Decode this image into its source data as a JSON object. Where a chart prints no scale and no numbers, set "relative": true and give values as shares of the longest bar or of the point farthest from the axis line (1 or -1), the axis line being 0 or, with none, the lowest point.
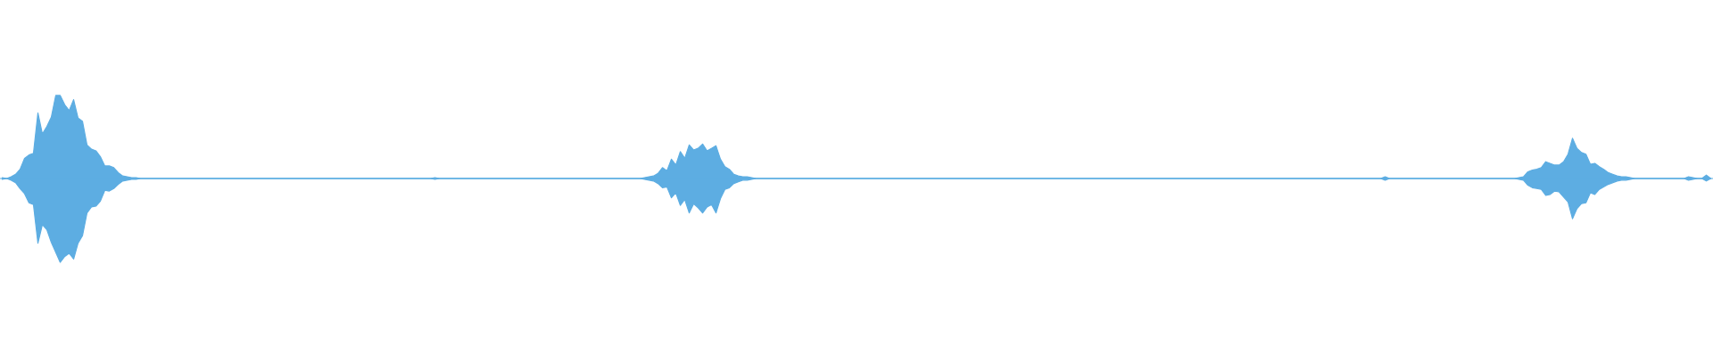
{
  "chart_data": {
    "type": "area",
    "relative": true,
    "categories": [
      null,
      null,
      null,
      null,
      null,
      null,
      null,
      null,
      null,
      null,
      null,
      null,
      null,
      null,
      null,
      null,
      null,
      null,
      null,
      null,
      null,
      null,
      null,
      null,
      null,
      null,
      null,
      null,
      null,
      null,
      null,
      null,
      null,
      null,
      null,
      null,
      null,
      null,
      null,
      null,
      null,
      null,
      null,
      null,
      null,
      null,
      null,
      null,
      null,
      null,
      null,
      null,
      null,
      null,
      null,
      null,
      null,
      null,
      null,
      null,
      null,
      null,
      null,
      null,
      null,
      null,
      null,
      null,
      null,
      null,
      null,
      null,
      null,
      null,
      null,
      null,
      null,
      null,
      null,
      null,
      null,
      null,
      null,
      null,
      null,
      null,
      null,
      null,
      null,
      null,
      null,
      null,
      null,
      null,
      null,
      null,
      null,
      null,
      null,
      null,
      null,
      null,
      null,
      null,
      null,
      null,
      null,
      null,
      null,
      null,
      null,
      null,
      null,
      null,
      null,
      null,
      null,
      null,
      null,
      null,
      null,
      null,
      null,
      null,
      null,
      null,
      null,
      null,
      null,
      null,
      null,
      null,
      null,
      null,
      null,
      null,
      null,
      null,
      null,
      null,
      null,
      null,
      null,
      null,
      null,
      null,
      null,
      null,
      null,
      null,
      null,
      null,
      null,
      null,
      null,
      null,
      null,
      null,
      null,
      null,
      null,
      null,
      null,
      null,
      null,
      null,
      null,
      null,
      null,
      null,
      null,
      null,
      null,
      null,
      null,
      null,
      null,
      null,
      null,
      null,
      null,
      null,
      null,
      null,
      null,
      null,
      null,
      null,
      null,
      null,
      null,
      null,
      null,
      null,
      null,
      null,
      null,
      null,
      null,
      null,
      null,
      null,
      null,
      null,
      null,
      null,
      null,
      null,
      null,
      null,
      null,
      null,
      null,
      null,
      null,
      null,
      null,
      null,
      null,
      null,
      null,
      null,
      null,
      null,
      null,
      null,
      null,
      null,
      null,
      null,
      null,
      null,
      null,
      null,
      null,
      null,
      null,
      null,
      null,
      null,
      null,
      null,
      null,
      null,
      null,
      null,
      null,
      null,
      null,
      null,
      null,
      null,
      null,
      null,
      null,
      null,
      null,
      null,
      null,
      null,
      null,
      null,
      null,
      null,
      null,
      null,
      null,
      null,
      null,
      null,
      null,
      null,
      null,
      null,
      null,
      null,
      null,
      null,
      null,
      null,
      null,
      null,
      null,
      null,
      null,
      null,
      null,
      null,
      null,
      null,
      null,
      null,
      null,
      null,
      null,
      null,
      null,
      null,
      null,
      null,
      null,
      null,
      null,
      null,
      null,
      null,
      null,
      null,
      null,
      null,
      null,
      null,
      null,
      null,
      null,
      null,
      null,
      null,
      null,
      null,
      null,
      null,
      null,
      null,
      null,
      null,
      null,
      null,
      null,
      null,
      null,
      null,
      null,
      null,
      null,
      null,
      null,
      null,
      null,
      null,
      null,
      null,
      null,
      null,
      null,
      null,
      null,
      null,
      null,
      null,
      null,
      null,
      null,
      null,
      null,
      null,
      null,
      null,
      null,
      null,
      null,
      null,
      null,
      null,
      null,
      null,
      null,
      null,
      null,
      null,
      null,
      null,
      null,
      null,
      null,
      null,
      null,
      null,
      null,
      null,
      null,
      null,
      null,
      null
    ],
    "series": [
      {
        "color": "#5dade2",
        "values": [
          0.01,
          0,
          0.02,
          0.05,
          0.11,
          0.24,
          0.28,
          0.3,
          0.78,
          0.53,
          0.62,
          0.73,
          0.99,
          0.99,
          0.88,
          0.81,
          0.94,
          0.72,
          0.68,
          0.4,
          0.35,
          0.33,
          0.26,
          0.15,
          0.15,
          0.13,
          0.07,
          0.03,
          0.02,
          0.01,
          0.01,
          0,
          0,
          0,
          0,
          0,
          0,
          0,
          0,
          0,
          0,
          0,
          0,
          0,
          0,
          0,
          0,
          0,
          0,
          0,
          0,
          0,
          0,
          0,
          0,
          0,
          0,
          0,
          0,
          0,
          0,
          0,
          0,
          0,
          0,
          0,
          0,
          0,
          0,
          0,
          0,
          0,
          0,
          0,
          0,
          0,
          0,
          0,
          0,
          0,
          0,
          0,
          0,
          0,
          0,
          0,
          0,
          0,
          0,
          0,
          0,
          0,
          0,
          0,
          0,
          0,
          0,
          0.01,
          0,
          0,
          0,
          0,
          0,
          0,
          0,
          0,
          0,
          0,
          0,
          0,
          0,
          0,
          0,
          0,
          0,
          0,
          0,
          0,
          0,
          0,
          0,
          0,
          0,
          0,
          0,
          0,
          0,
          0,
          0,
          0,
          0,
          0,
          0,
          0,
          0,
          0,
          0,
          0,
          0,
          0,
          0,
          0,
          0,
          0,
          0.01,
          0.02,
          0.03,
          0.06,
          0.13,
          0.09,
          0.23,
          0.16,
          0.32,
          0.24,
          0.4,
          0.34,
          0.36,
          0.41,
          0.33,
          0.36,
          0.39,
          0.23,
          0.14,
          0.11,
          0.05,
          0.03,
          0.02,
          0.02,
          0.01,
          0,
          0,
          0,
          0,
          0,
          0,
          0,
          0,
          0,
          0,
          0,
          0,
          0,
          0,
          0,
          0,
          0,
          0,
          0,
          0,
          0,
          0,
          0,
          0,
          0,
          0,
          0,
          0,
          0,
          0,
          0,
          0,
          0,
          0,
          0,
          0,
          0,
          0,
          0,
          0,
          0,
          0,
          0,
          0,
          0,
          0,
          0,
          0,
          0,
          0,
          0,
          0,
          0,
          0,
          0,
          0,
          0,
          0,
          0,
          0,
          0,
          0,
          0,
          0,
          0,
          0,
          0,
          0,
          0,
          0,
          0,
          0,
          0,
          0,
          0,
          0,
          0,
          0,
          0,
          0,
          0,
          0,
          0,
          0,
          0,
          0,
          0,
          0,
          0,
          0,
          0,
          0,
          0,
          0,
          0,
          0,
          0,
          0,
          0,
          0,
          0,
          0,
          0,
          0,
          0,
          0,
          0,
          0,
          0,
          0,
          0,
          0,
          0,
          0,
          0,
          0,
          0,
          0,
          0,
          0,
          0,
          0,
          0,
          0,
          0,
          0,
          0,
          0,
          0,
          0,
          0,
          0,
          0,
          0,
          0,
          0,
          0,
          0,
          0,
          0,
          0,
          0.02,
          0,
          0,
          0,
          0,
          0,
          0,
          0,
          0,
          0,
          0,
          0,
          0,
          0,
          0,
          0,
          0,
          0,
          0,
          0,
          0,
          0,
          0,
          0,
          0,
          0,
          0,
          0,
          0,
          0,
          0.01,
          0.02,
          0.08,
          0.1,
          0.11,
          0.13,
          0.2,
          0.18,
          0.16,
          0.16,
          0.2,
          0.29,
          0.48,
          0.36,
          0.31,
          0.29,
          0.17,
          0.18,
          0.14,
          0.11,
          0.07,
          0.05,
          0.03,
          0.02,
          0.02,
          0.01,
          0,
          0,
          0,
          0,
          0,
          0,
          0,
          0,
          0,
          0,
          0,
          0,
          0.02,
          0.01,
          0,
          0,
          0.04,
          0
        ]
      },
      {
        "color": "#5dade2",
        "values": [
          -0.01,
          0,
          -0.02,
          -0.05,
          -0.12,
          -0.18,
          -0.29,
          -0.31,
          -0.77,
          -0.55,
          -0.61,
          -0.76,
          -0.88,
          -1,
          -0.93,
          -0.89,
          -0.96,
          -0.77,
          -0.68,
          -0.41,
          -0.34,
          -0.33,
          -0.27,
          -0.14,
          -0.15,
          -0.12,
          -0.07,
          -0.03,
          -0.02,
          -0.01,
          -0.01,
          0,
          0,
          0,
          0,
          0,
          0,
          0,
          0,
          0,
          0,
          0,
          0,
          0,
          0,
          0,
          0,
          0,
          0,
          0,
          0,
          0,
          0,
          0,
          0,
          0,
          0,
          0,
          0,
          0,
          0,
          0,
          0,
          0,
          0,
          0,
          0,
          0,
          0,
          0,
          0,
          0,
          0,
          0,
          0,
          0,
          0,
          0,
          0,
          0,
          0,
          0,
          0,
          0,
          0,
          0,
          0,
          0,
          0,
          0,
          0,
          0,
          0,
          0,
          0,
          0,
          0,
          -0.01,
          0,
          0,
          0,
          0,
          0,
          0,
          0,
          0,
          0,
          0,
          0,
          0,
          0,
          0,
          0,
          0,
          0,
          0,
          0,
          0,
          0,
          0,
          0,
          0,
          0,
          0,
          0,
          0,
          0,
          0,
          0,
          0,
          0,
          0,
          0,
          0,
          0,
          0,
          0,
          0,
          0,
          0,
          0,
          0,
          0,
          0,
          -0.01,
          -0.02,
          -0.03,
          -0.06,
          -0.11,
          -0.1,
          -0.23,
          -0.17,
          -0.32,
          -0.25,
          -0.41,
          -0.3,
          -0.35,
          -0.41,
          -0.34,
          -0.31,
          -0.41,
          -0.24,
          -0.13,
          -0.11,
          -0.06,
          -0.04,
          -0.02,
          -0.02,
          -0.01,
          0,
          0,
          0,
          0,
          0,
          0,
          0,
          0,
          0,
          0,
          0,
          0,
          0,
          0,
          0,
          0,
          0,
          0,
          0,
          0,
          0,
          0,
          0,
          0,
          0,
          0,
          0,
          0,
          0,
          0,
          0,
          0,
          0,
          0,
          0,
          0,
          0,
          0,
          0,
          0,
          0,
          0,
          0,
          0,
          0,
          0,
          0,
          0,
          0,
          0,
          0,
          0,
          0,
          0,
          0,
          0,
          0,
          0,
          0,
          0,
          0,
          0,
          0,
          0,
          0,
          0,
          0,
          0,
          0,
          0,
          0,
          0,
          0,
          0,
          0,
          0,
          0,
          0,
          0,
          0,
          0,
          0,
          0,
          0,
          0,
          0,
          0,
          0,
          0,
          0,
          0,
          0,
          0,
          0,
          0,
          0,
          0,
          0,
          0,
          0,
          0,
          0,
          0,
          0,
          0,
          0,
          0,
          0,
          0,
          0,
          0,
          0,
          0,
          0,
          0,
          0,
          0,
          0,
          0,
          0,
          0,
          0,
          0,
          0,
          0,
          0,
          0,
          0,
          0,
          0,
          0,
          0,
          0,
          0,
          0,
          0,
          0,
          0,
          0,
          0,
          0,
          -0.02,
          0,
          0,
          0,
          0,
          0,
          0,
          0,
          0,
          0,
          0,
          0,
          0,
          0,
          0,
          0,
          0,
          0,
          0,
          0,
          0,
          0,
          0,
          0,
          0,
          0,
          0,
          0,
          0,
          0,
          -0.01,
          -0.02,
          -0.08,
          -0.11,
          -0.12,
          -0.13,
          -0.2,
          -0.19,
          -0.15,
          -0.16,
          -0.22,
          -0.28,
          -0.48,
          -0.36,
          -0.3,
          -0.29,
          -0.17,
          -0.19,
          -0.13,
          -0.1,
          -0.07,
          -0.05,
          -0.03,
          -0.02,
          -0.02,
          -0.01,
          0,
          0,
          0,
          0,
          0,
          0,
          0,
          0,
          0,
          0,
          0,
          0,
          -0.02,
          -0.01,
          0,
          0,
          -0.03,
          0
        ]
      }
    ]
  }
}
